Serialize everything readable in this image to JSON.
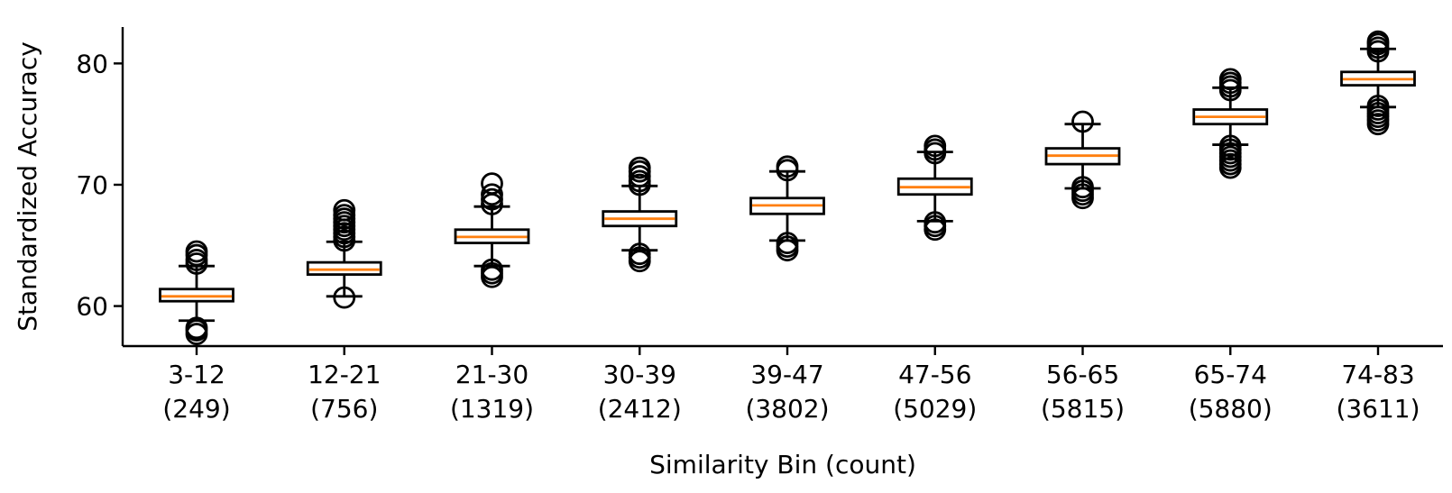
{
  "chart_data": {
    "type": "box",
    "title": "",
    "xlabel": "Similarity Bin (count)",
    "ylabel": "Standardized Accuracy",
    "ylim": [
      56.7,
      83.0
    ],
    "yticks": [
      60,
      70,
      80
    ],
    "grid": false,
    "legend": null,
    "median_color": "#ff7f0e",
    "box_color": "#000000",
    "categories": [
      {
        "bin": "3-12",
        "count": "(249)"
      },
      {
        "bin": "12-21",
        "count": "(756)"
      },
      {
        "bin": "21-30",
        "count": "(1319)"
      },
      {
        "bin": "30-39",
        "count": "(2412)"
      },
      {
        "bin": "39-47",
        "count": "(3802)"
      },
      {
        "bin": "47-56",
        "count": "(5029)"
      },
      {
        "bin": "56-65",
        "count": "(5815)"
      },
      {
        "bin": "65-74",
        "count": "(5880)"
      },
      {
        "bin": "74-83",
        "count": "(3611)"
      }
    ],
    "boxes": [
      {
        "whisker_low": 58.8,
        "q1": 60.4,
        "median": 60.8,
        "q3": 61.4,
        "whisker_high": 63.3,
        "outliers": [
          57.7,
          58.0,
          58.2,
          63.5,
          63.8,
          64.2,
          64.5
        ]
      },
      {
        "whisker_low": 60.8,
        "q1": 62.6,
        "median": 63.0,
        "q3": 63.6,
        "whisker_high": 65.3,
        "outliers": [
          60.7,
          65.4,
          65.7,
          66.0,
          66.3,
          66.6,
          66.9,
          67.2,
          67.5,
          67.9
        ]
      },
      {
        "whisker_low": 63.3,
        "q1": 65.2,
        "median": 65.7,
        "q3": 66.3,
        "whisker_high": 68.2,
        "outliers": [
          62.4,
          62.7,
          63.0,
          68.4,
          68.8,
          69.2,
          70.1
        ]
      },
      {
        "whisker_low": 64.6,
        "q1": 66.6,
        "median": 67.2,
        "q3": 67.8,
        "whisker_high": 69.9,
        "outliers": [
          63.7,
          64.0,
          64.3,
          70.0,
          70.3,
          70.7,
          71.1,
          71.4
        ]
      },
      {
        "whisker_low": 65.4,
        "q1": 67.6,
        "median": 68.3,
        "q3": 68.9,
        "whisker_high": 71.1,
        "outliers": [
          64.6,
          64.9,
          65.2,
          71.2,
          71.5
        ]
      },
      {
        "whisker_low": 67.0,
        "q1": 69.2,
        "median": 69.8,
        "q3": 70.5,
        "whisker_high": 72.7,
        "outliers": [
          66.3,
          66.6,
          66.9,
          72.6,
          72.9,
          73.2
        ]
      },
      {
        "whisker_low": 69.7,
        "q1": 71.7,
        "median": 72.4,
        "q3": 73.0,
        "whisker_high": 75.0,
        "outliers": [
          68.9,
          69.2,
          69.5,
          69.8,
          75.2
        ]
      },
      {
        "whisker_low": 73.3,
        "q1": 75.0,
        "median": 75.6,
        "q3": 76.2,
        "whisker_high": 78.0,
        "outliers": [
          71.4,
          71.7,
          72.0,
          72.3,
          72.6,
          72.9,
          73.2,
          77.8,
          78.1,
          78.4,
          78.7
        ]
      },
      {
        "whisker_low": 76.4,
        "q1": 78.2,
        "median": 78.7,
        "q3": 79.3,
        "whisker_high": 81.2,
        "outliers": [
          75.0,
          75.3,
          75.6,
          75.9,
          76.2,
          76.5,
          81.0,
          81.3,
          81.6,
          81.8
        ]
      }
    ]
  }
}
